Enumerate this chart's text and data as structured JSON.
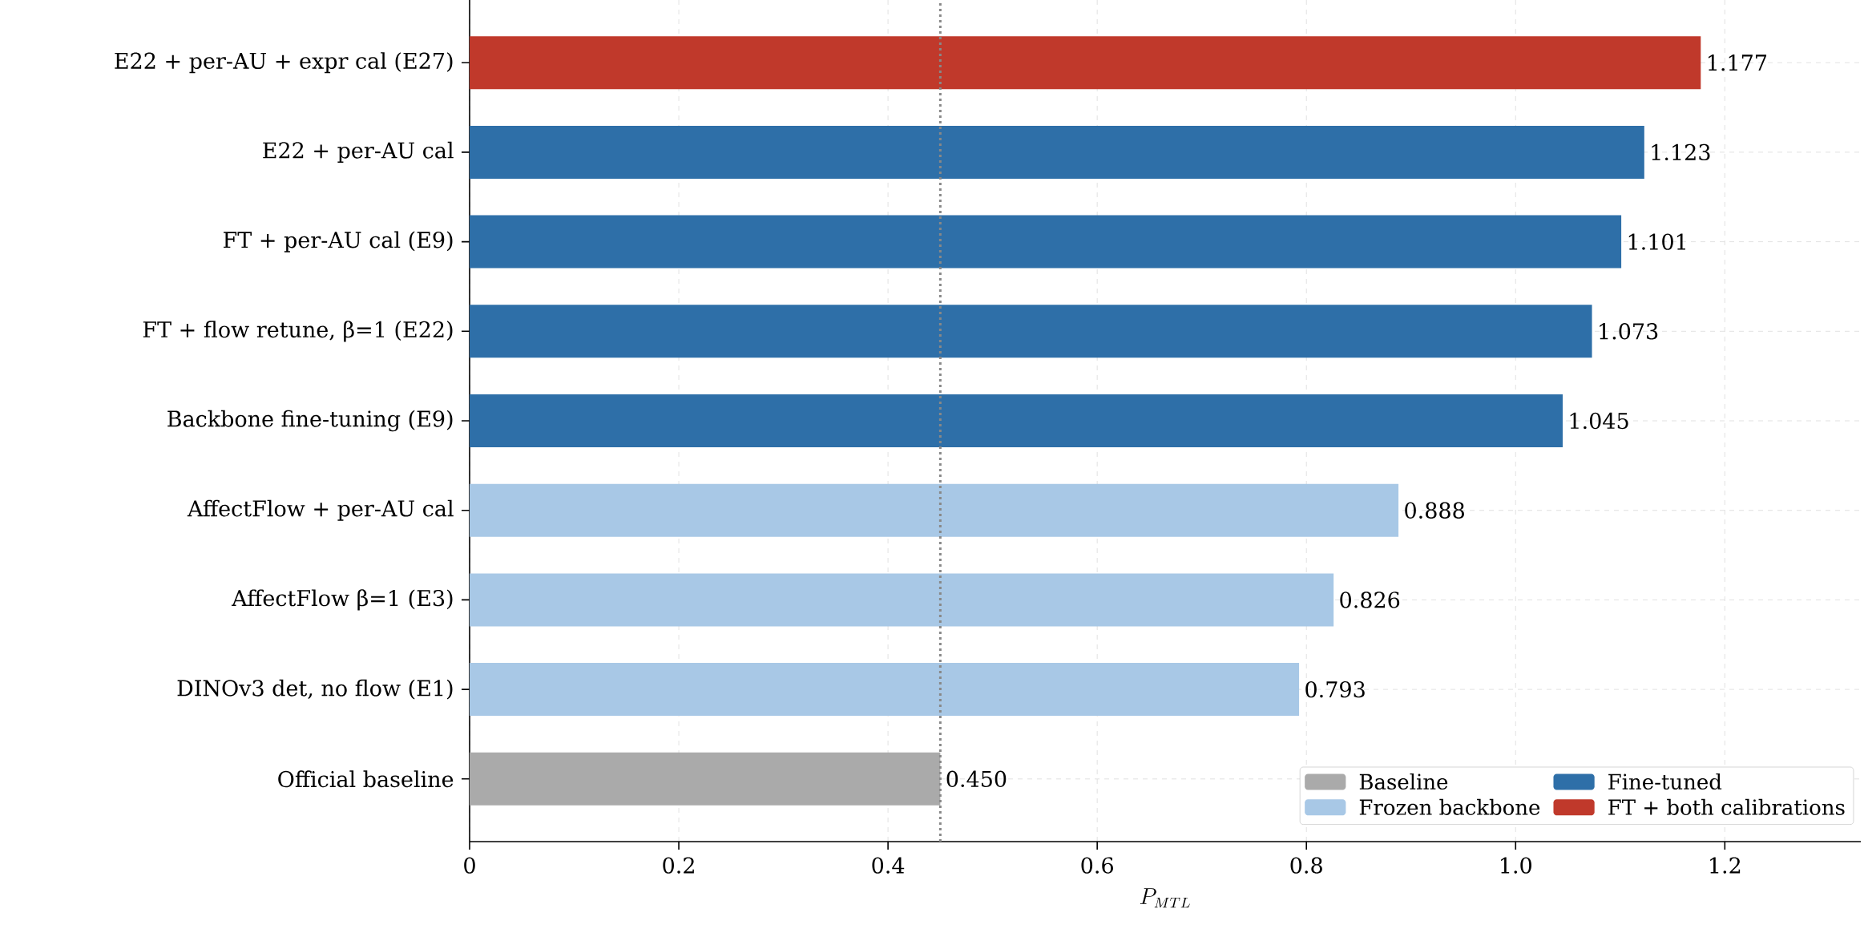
{
  "chart_data": {
    "type": "bar",
    "orientation": "horizontal",
    "xlabel": "P_{MTL}",
    "categories": [
      "E22 + per-AU + expr cal (E27)",
      "E22 + per-AU cal",
      "FT + per-AU cal (E9)",
      "FT + flow retune, β=1 (E22)",
      "Backbone fine-tuning (E9)",
      "AffectFlow + per-AU cal",
      "AffectFlow β=1 (E3)",
      "DINOv3 det, no flow (E1)",
      "Official baseline"
    ],
    "series": [
      {
        "name": "Baseline",
        "color": "#aaaaaa",
        "values": [
          null,
          null,
          null,
          null,
          null,
          null,
          null,
          null,
          0.45
        ],
        "value_labels": [
          null,
          null,
          null,
          null,
          null,
          null,
          null,
          null,
          "0.450"
        ]
      },
      {
        "name": "Fine-tuned",
        "color": "#2e6fa8",
        "values": [
          null,
          1.123,
          1.101,
          1.073,
          1.045,
          null,
          null,
          null,
          null
        ],
        "value_labels": [
          null,
          "1.123",
          "1.101",
          "1.073",
          "1.045",
          null,
          null,
          null,
          null
        ]
      },
      {
        "name": "Frozen backbone",
        "color": "#a8c8e6",
        "values": [
          null,
          null,
          null,
          null,
          null,
          0.888,
          0.826,
          0.793,
          null
        ],
        "value_labels": [
          null,
          null,
          null,
          null,
          null,
          "0.888",
          "0.826",
          "0.793",
          null
        ]
      },
      {
        "name": "FT + both calibrations",
        "color": "#c0392b",
        "values": [
          1.177,
          null,
          null,
          null,
          null,
          null,
          null,
          null,
          null
        ],
        "value_labels": [
          "1.177",
          null,
          null,
          null,
          null,
          null,
          null,
          null,
          null
        ]
      }
    ],
    "xlim": [
      0,
      1.33
    ],
    "xticks": [
      0,
      {
        "value": 0.2,
        "label": "0.2"
      },
      {
        "value": 0.4,
        "label": "0.4"
      },
      {
        "value": 0.6,
        "label": "0.6"
      },
      {
        "value": 0.8,
        "label": "0.8"
      },
      {
        "value": 1.0,
        "label": "1.0"
      },
      {
        "value": 1.2,
        "label": "1.2"
      }
    ],
    "ref_lines": [
      {
        "axis": "x",
        "value": 0.45,
        "color": "#888888",
        "line_style": "dotted"
      }
    ],
    "grid": true,
    "legend": "bottom right"
  }
}
